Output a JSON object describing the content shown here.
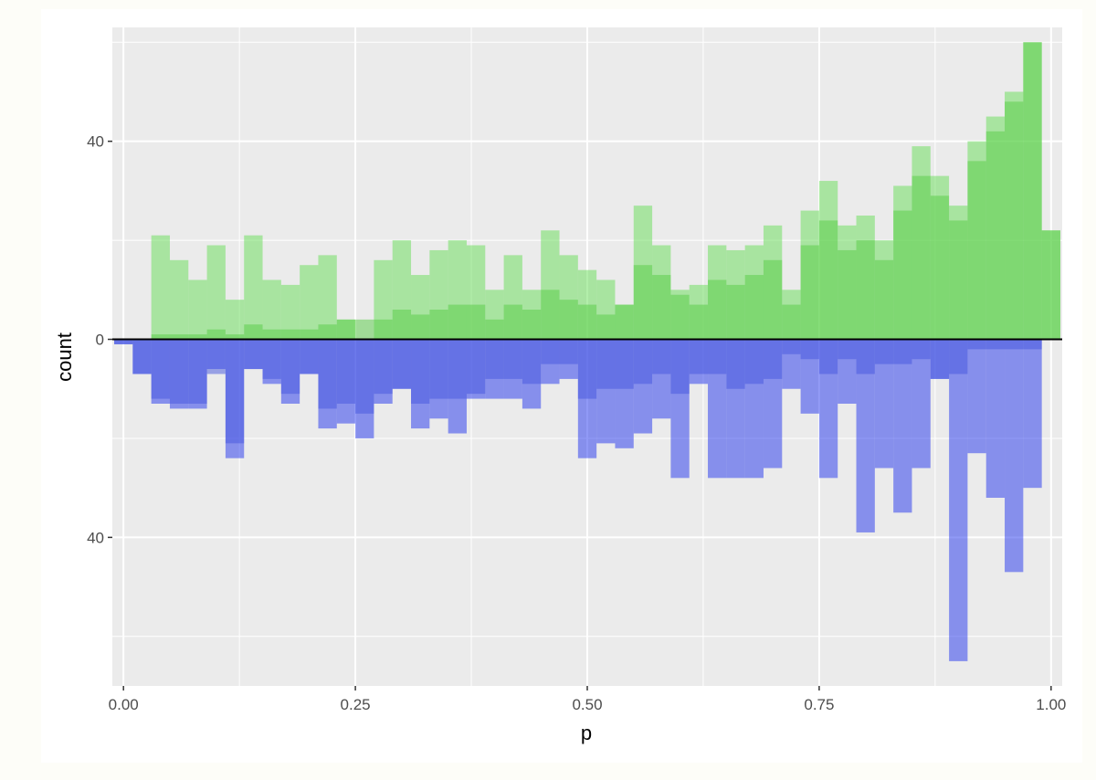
{
  "chart_data": {
    "type": "bar",
    "subtype": "mirrored-histogram",
    "xlabel": "p",
    "ylabel": "count",
    "xlim": [
      -0.012,
      1.012
    ],
    "ylim": [
      -70,
      63
    ],
    "x_ticks": [
      {
        "value": 0.0,
        "label": "0.00"
      },
      {
        "value": 0.25,
        "label": "0.25"
      },
      {
        "value": 0.5,
        "label": "0.50"
      },
      {
        "value": 0.75,
        "label": "0.75"
      },
      {
        "value": 1.0,
        "label": "1.00"
      }
    ],
    "y_ticks": [
      {
        "value": 40,
        "label": "40"
      },
      {
        "value": 0,
        "label": "0"
      },
      {
        "value": -40,
        "label": "40"
      }
    ],
    "grid": true,
    "zero_line": true,
    "bin_width": 0.02,
    "bin_left_edges": [
      -0.01,
      0.01,
      0.03,
      0.05,
      0.07,
      0.09,
      0.11,
      0.13,
      0.15,
      0.17,
      0.19,
      0.21,
      0.23,
      0.25,
      0.27,
      0.29,
      0.31,
      0.33,
      0.35,
      0.37,
      0.39,
      0.41,
      0.43,
      0.45,
      0.47,
      0.49,
      0.51,
      0.53,
      0.55,
      0.57,
      0.59,
      0.61,
      0.63,
      0.65,
      0.67,
      0.69,
      0.71,
      0.73,
      0.75,
      0.77,
      0.79,
      0.81,
      0.83,
      0.85,
      0.87,
      0.89,
      0.91,
      0.93,
      0.95,
      0.97,
      0.99
    ],
    "series": [
      {
        "direction": "up",
        "color": "#66dd55",
        "opacity": 0.5,
        "values": [
          0,
          0,
          21,
          16,
          12,
          19,
          8,
          21,
          12,
          11,
          15,
          17,
          4,
          0,
          16,
          20,
          13,
          18,
          20,
          19,
          10,
          17,
          10,
          22,
          17,
          14,
          12,
          7,
          27,
          19,
          10,
          11,
          19,
          18,
          19,
          23,
          10,
          26,
          32,
          23,
          25,
          20,
          31,
          39,
          33,
          27,
          40,
          45,
          50,
          60,
          22
        ]
      },
      {
        "direction": "up",
        "color": "#55cc44",
        "opacity": 0.5,
        "values": [
          0,
          0,
          1,
          1,
          1,
          2,
          1,
          3,
          2,
          2,
          2,
          3,
          4,
          4,
          4,
          6,
          5,
          6,
          7,
          7,
          4,
          7,
          6,
          10,
          8,
          7,
          5,
          7,
          15,
          13,
          9,
          7,
          12,
          11,
          13,
          16,
          7,
          19,
          24,
          18,
          20,
          16,
          26,
          33,
          29,
          24,
          36,
          42,
          48,
          60,
          22
        ]
      },
      {
        "direction": "down",
        "color": "#2233ee",
        "opacity": 0.5,
        "values": [
          1,
          7,
          13,
          14,
          14,
          6,
          24,
          6,
          9,
          13,
          7,
          18,
          17,
          20,
          13,
          10,
          18,
          16,
          19,
          12,
          12,
          12,
          14,
          9,
          8,
          24,
          21,
          22,
          19,
          16,
          28,
          9,
          28,
          28,
          28,
          26,
          10,
          15,
          28,
          13,
          39,
          26,
          35,
          26,
          8,
          65,
          23,
          32,
          47,
          30,
          0
        ]
      },
      {
        "direction": "down",
        "color": "#4455dd",
        "opacity": 0.5,
        "values": [
          1,
          7,
          12,
          13,
          13,
          7,
          21,
          6,
          8,
          11,
          7,
          14,
          13,
          15,
          11,
          10,
          13,
          12,
          12,
          11,
          8,
          8,
          9,
          5,
          5,
          12,
          10,
          10,
          9,
          7,
          11,
          7,
          7,
          10,
          9,
          8,
          3,
          4,
          7,
          4,
          7,
          5,
          5,
          4,
          8,
          7,
          2,
          2,
          2,
          2,
          0
        ]
      }
    ]
  }
}
